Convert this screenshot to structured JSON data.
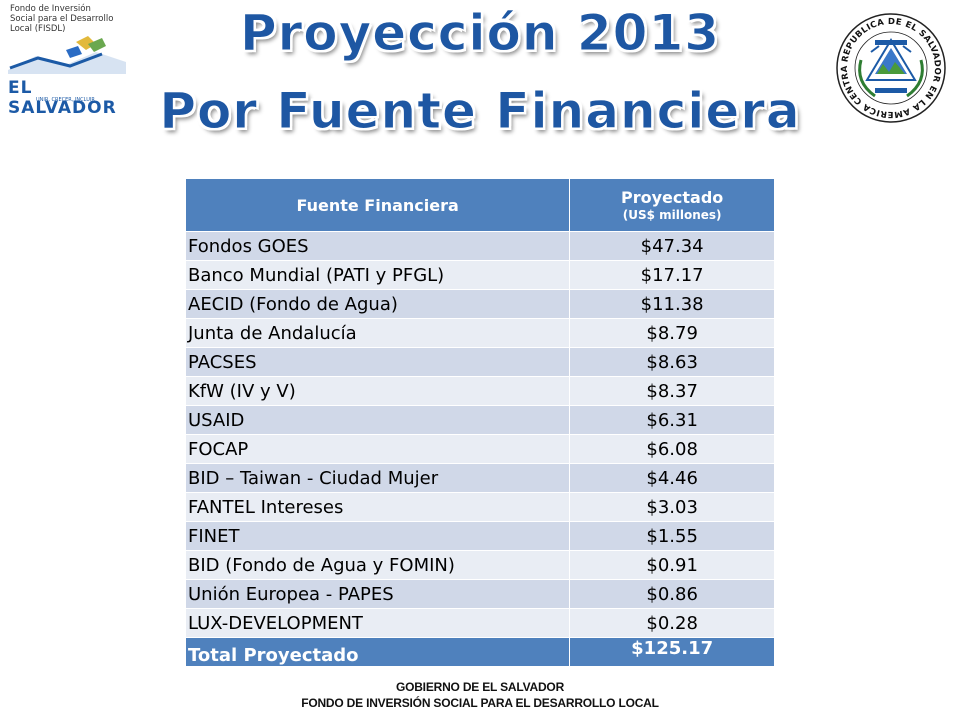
{
  "logo_left": {
    "org_line1": "Fondo de Inversión",
    "org_line2": "Social para el Desarrollo",
    "org_line3": "Local (FISDL)",
    "country": "EL SALVADOR",
    "tagline": "UNIR, CRECER, INCLUIR"
  },
  "seal": {
    "text": "REPUBLICA DE EL SALVADOR EN LA AMERICA CENTRAL",
    "icon": "coat-of-arms-icon"
  },
  "title": {
    "line1": "Proyección 2013",
    "line2": "Por Fuente Financiera"
  },
  "table": {
    "header_col1": "Fuente Financiera",
    "header_col2": "Proyectado",
    "header_col2_sub": "(US$ millones)",
    "rows": [
      {
        "name": "Fondos GOES",
        "value": "$47.34"
      },
      {
        "name": "Banco Mundial (PATI y PFGL)",
        "value": "$17.17"
      },
      {
        "name": "AECID (Fondo de Agua)",
        "value": "$11.38"
      },
      {
        "name": "Junta de Andalucía",
        "value": "$8.79"
      },
      {
        "name": "PACSES",
        "value": "$8.63"
      },
      {
        "name": "KfW (IV y V)",
        "value": "$8.37"
      },
      {
        "name": "USAID",
        "value": "$6.31"
      },
      {
        "name": "FOCAP",
        "value": "$6.08"
      },
      {
        "name": "BID – Taiwan - Ciudad Mujer",
        "value": "$4.46"
      },
      {
        "name": "FANTEL Intereses",
        "value": "$3.03"
      },
      {
        "name": "FINET",
        "value": "$1.55"
      },
      {
        "name": "BID (Fondo de Agua y FOMIN)",
        "value": "$0.91"
      },
      {
        "name": "Unión Europea - PAPES",
        "value": "$0.86"
      },
      {
        "name": "LUX-DEVELOPMENT",
        "value": "$0.28"
      }
    ],
    "total_label": "Total Proyectado",
    "total_value": "$125.17"
  },
  "footer": {
    "line1": "GOBIERNO DE EL SALVADOR",
    "line2": "FONDO DE INVERSIÓN SOCIAL PARA EL DESARROLLO LOCAL"
  },
  "colors": {
    "title": "#1e57a3",
    "header_bg": "#4f81bd",
    "row_odd": "#d0d8e8",
    "row_even": "#e9edf4"
  }
}
